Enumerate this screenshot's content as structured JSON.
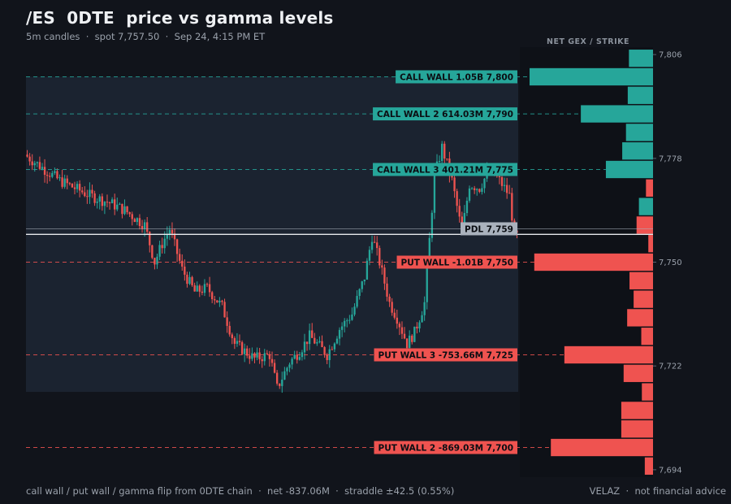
{
  "header": {
    "title": "/ES  0DTE  price vs gamma levels",
    "subtitle": "5m candles  ·  spot 7,757.50  ·  Sep 24, 4:15 PM ET"
  },
  "footer": {
    "left": "call wall / put wall / gamma flip from 0DTE chain  ·  net -837.06M  ·  straddle ±42.5 (0.55%)",
    "right": "VELAZ  ·  not financial advice"
  },
  "colors": {
    "call": "#26a69a",
    "put": "#ef5350",
    "pdl": "#aab2bd",
    "spot_line": "#e6e8ec",
    "straddle_band": "#1b2330"
  },
  "chart_data": {
    "type": "candlestick",
    "interval": "5m",
    "spot": 7757.5,
    "y_range": [
      7692,
      7808
    ],
    "y_ticks": [
      {
        "value": 7806,
        "label": "7,806"
      },
      {
        "value": 7778,
        "label": "7,778"
      },
      {
        "value": 7750,
        "label": "7,750"
      },
      {
        "value": 7722,
        "label": "7,722"
      },
      {
        "value": 7694,
        "label": "7,694"
      }
    ],
    "straddle_band": {
      "low": 7715,
      "high": 7800
    },
    "levels": [
      {
        "label": "CALL WALL  1.05B 7,800",
        "price": 7800,
        "kind": "call"
      },
      {
        "label": "CALL WALL 2  614.03M 7,790",
        "price": 7790,
        "kind": "call"
      },
      {
        "label": "CALL WALL 3  401.21M 7,775",
        "price": 7775,
        "kind": "call"
      },
      {
        "label": "PDL 7,759",
        "price": 7759,
        "kind": "pdl"
      },
      {
        "label": "PUT WALL  -1.01B 7,750",
        "price": 7750,
        "kind": "put"
      },
      {
        "label": "PUT WALL 3  -753.66M 7,725",
        "price": 7725,
        "kind": "put"
      },
      {
        "label": "PUT WALL 2  -869.03M 7,700",
        "price": 7700,
        "kind": "put"
      }
    ],
    "gex_panel": {
      "title": "NET GEX / STRIKE",
      "strikes": [
        7805,
        7800,
        7795,
        7790,
        7785,
        7780,
        7775,
        7770,
        7765,
        7760,
        7755,
        7750,
        7745,
        7740,
        7735,
        7730,
        7725,
        7720,
        7715,
        7710,
        7705,
        7700,
        7695
      ],
      "values_m": [
        205,
        1050,
        215,
        614,
        230,
        262,
        401,
        -60,
        120,
        -140,
        -40,
        -1010,
        -200,
        -165,
        -220,
        -100,
        -754,
        -250,
        -95,
        -270,
        -270,
        -869,
        -70
      ]
    },
    "candles": "generated procedurally from anchor path (OHLC in price units)",
    "price_path": [
      [
        0,
        7779
      ],
      [
        6,
        7776
      ],
      [
        14,
        7772
      ],
      [
        26,
        7768
      ],
      [
        34,
        7766
      ],
      [
        40,
        7764
      ],
      [
        48,
        7760
      ],
      [
        52,
        7750
      ],
      [
        55,
        7755
      ],
      [
        58,
        7759
      ],
      [
        63,
        7748
      ],
      [
        68,
        7742
      ],
      [
        73,
        7743
      ],
      [
        79,
        7738
      ],
      [
        84,
        7728
      ],
      [
        92,
        7724
      ],
      [
        98,
        7725
      ],
      [
        101,
        7716
      ],
      [
        106,
        7723
      ],
      [
        110,
        7726
      ],
      [
        114,
        7730
      ],
      [
        117,
        7728
      ],
      [
        121,
        7725
      ],
      [
        126,
        7732
      ],
      [
        131,
        7736
      ],
      [
        136,
        7746
      ],
      [
        139,
        7757
      ],
      [
        142,
        7750
      ],
      [
        146,
        7739
      ],
      [
        149,
        7735
      ],
      [
        153,
        7728
      ],
      [
        156,
        7731
      ],
      [
        160,
        7739
      ],
      [
        164,
        7773
      ],
      [
        167,
        7781
      ],
      [
        171,
        7772
      ],
      [
        175,
        7758
      ],
      [
        178,
        7771
      ],
      [
        182,
        7770
      ],
      [
        186,
        7775
      ],
      [
        190,
        7772
      ],
      [
        194,
        7768
      ],
      [
        196,
        7757
      ]
    ],
    "candle_count": 197
  }
}
